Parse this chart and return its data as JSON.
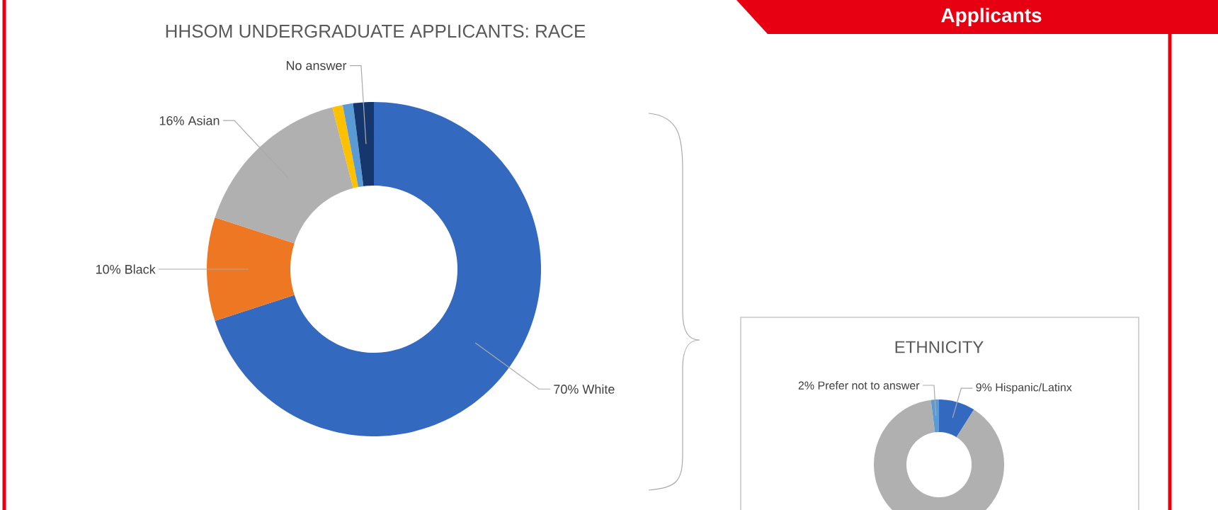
{
  "chart_data": [
    {
      "type": "donut",
      "title": "HHSOM UNDERGRADUATE APPLICANTS: RACE",
      "annotations": [
        "Applicants"
      ],
      "categories": [
        "White",
        "Black",
        "Asian",
        null,
        null,
        "No answer"
      ],
      "values": [
        70,
        10,
        16,
        1,
        1,
        2
      ],
      "value_labels": [
        "70%",
        "10%",
        "16%",
        null,
        null,
        null
      ],
      "colors": [
        "#3469c0",
        "#ed7722",
        "#b0b0b0",
        "#ffc000",
        "#5b9bd5",
        "#16366e"
      ]
    },
    {
      "type": "donut",
      "title": "ETHNICITY",
      "categories": [
        "Hispanic/Latinx",
        null,
        "Prefer not to answer"
      ],
      "values": [
        9,
        89,
        2
      ],
      "value_labels": [
        "9%",
        null,
        "2%"
      ],
      "colors": [
        "#3469c0",
        "#b0b0b0",
        "#5b9bd5"
      ]
    }
  ]
}
